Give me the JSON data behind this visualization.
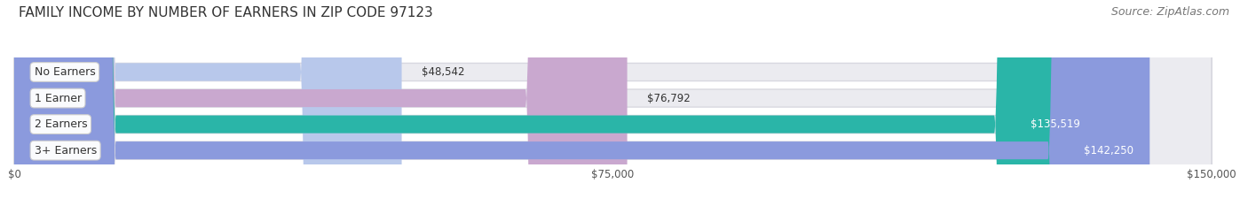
{
  "title": "FAMILY INCOME BY NUMBER OF EARNERS IN ZIP CODE 97123",
  "source": "Source: ZipAtlas.com",
  "categories": [
    "No Earners",
    "1 Earner",
    "2 Earners",
    "3+ Earners"
  ],
  "values": [
    48542,
    76792,
    135519,
    142250
  ],
  "bar_colors": [
    "#b8c8eb",
    "#c9a8cf",
    "#2ab5a8",
    "#8b9add"
  ],
  "bar_label_colors": [
    "#444444",
    "#444444",
    "#ffffff",
    "#ffffff"
  ],
  "value_labels": [
    "$48,542",
    "$76,792",
    "$135,519",
    "$142,250"
  ],
  "xlim": [
    0,
    150000
  ],
  "xticks": [
    0,
    75000,
    150000
  ],
  "xtick_labels": [
    "$0",
    "$75,000",
    "$150,000"
  ],
  "background_color": "#ffffff",
  "bar_bg_color": "#ebebf0",
  "bar_bg_edge_color": "#d8d8e0",
  "title_fontsize": 11,
  "source_fontsize": 9,
  "label_fontsize": 9,
  "value_fontsize": 8.5
}
